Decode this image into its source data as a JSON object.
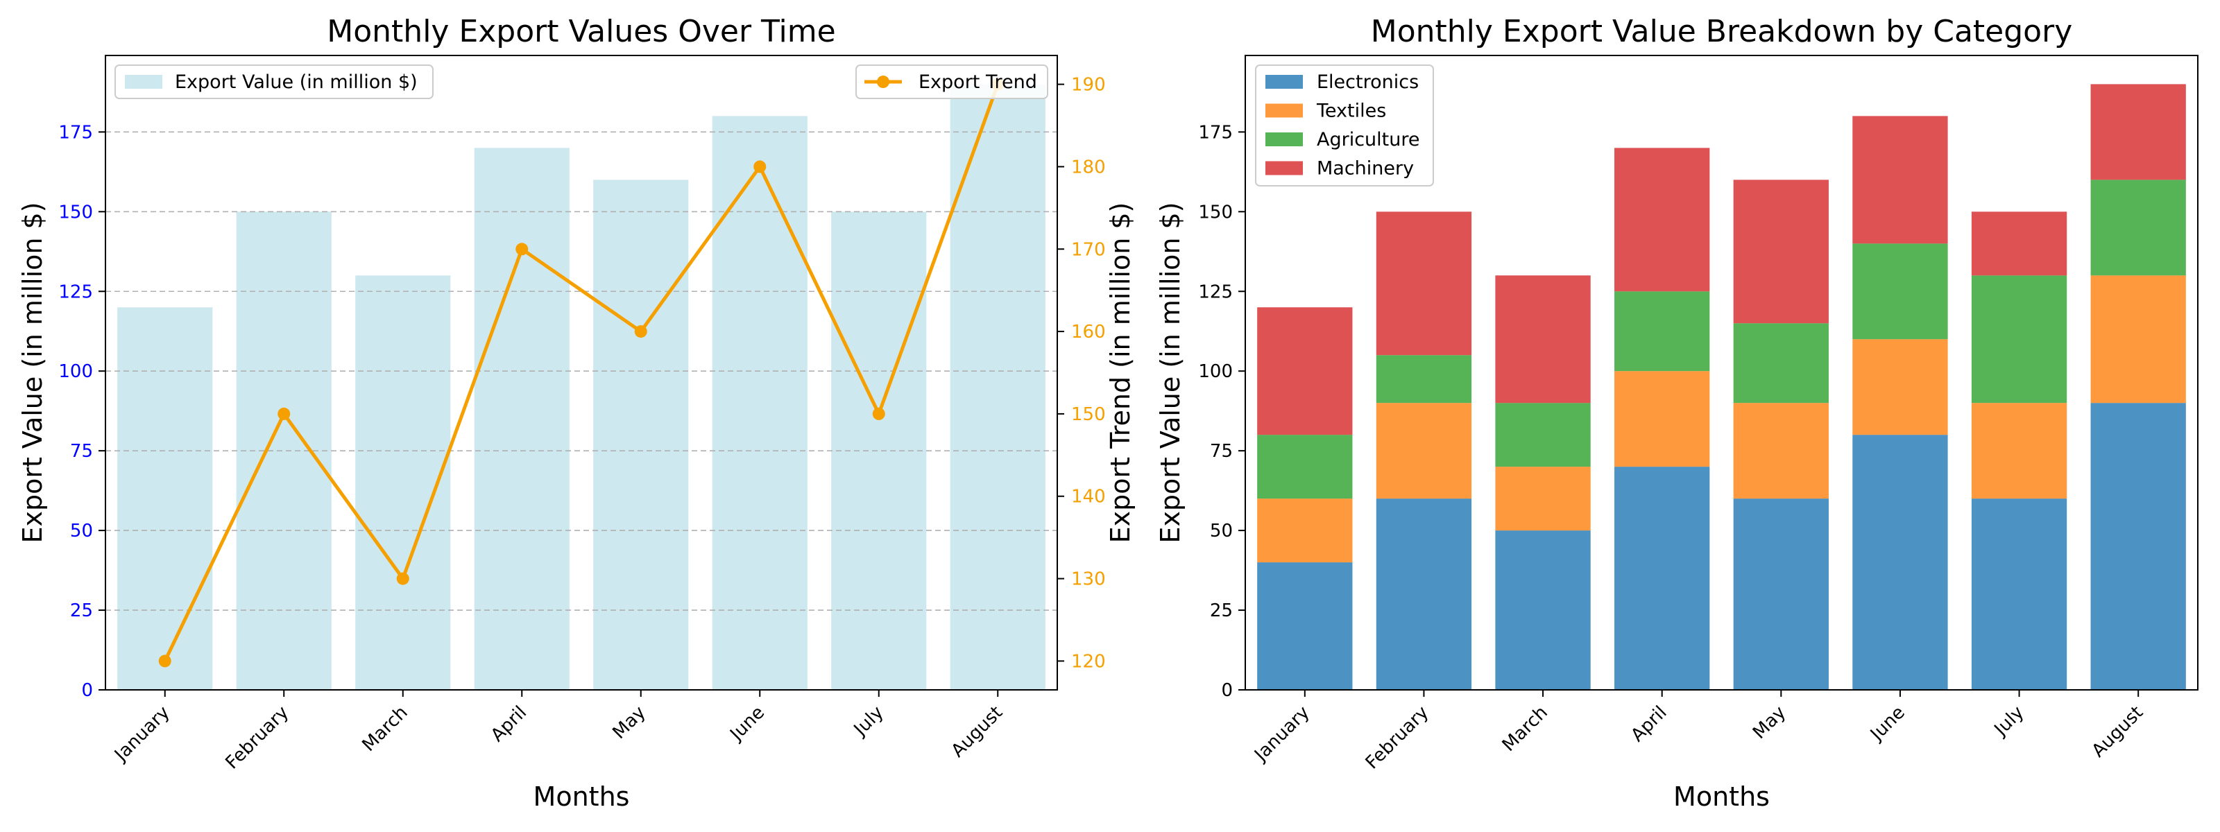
{
  "chart_data": [
    {
      "type": "bar",
      "title": "Monthly Export Values Over Time",
      "xlabel": "Months",
      "ylabel": "Export Value (in million $)",
      "ylabel_right": "Export Trend (in million $)",
      "categories": [
        "January",
        "February",
        "March",
        "April",
        "May",
        "June",
        "July",
        "August"
      ],
      "ylim": [
        0,
        199
      ],
      "ylim_right": [
        116.5,
        193.5
      ],
      "yticks": [
        0,
        25,
        50,
        75,
        100,
        125,
        150,
        175
      ],
      "yticks_right": [
        120,
        130,
        140,
        150,
        160,
        170,
        180,
        190
      ],
      "grid": "horizontal dashed",
      "series": [
        {
          "name": "Export Value (in million $)",
          "kind": "bar",
          "axis": "left",
          "color": "#add8e6",
          "values": [
            120,
            150,
            130,
            170,
            160,
            180,
            150,
            190
          ]
        },
        {
          "name": "Export Trend",
          "kind": "line",
          "axis": "right",
          "color": "#f5a000",
          "values": [
            120,
            150,
            130,
            170,
            160,
            180,
            150,
            190
          ]
        }
      ],
      "legends": [
        {
          "placement": "upper-left",
          "entries": [
            "Export Value (in million $)"
          ]
        },
        {
          "placement": "upper-right",
          "entries": [
            "Export Trend"
          ]
        }
      ],
      "colors": {
        "left_axis": "#0000ff",
        "right_axis": "#f5a000"
      }
    },
    {
      "type": "bar",
      "stacked": true,
      "title": "Monthly Export Value Breakdown by Category",
      "xlabel": "Months",
      "ylabel": "Export Value (in million $)",
      "categories": [
        "January",
        "February",
        "March",
        "April",
        "May",
        "June",
        "July",
        "August"
      ],
      "ylim": [
        0,
        199
      ],
      "yticks": [
        0,
        25,
        50,
        75,
        100,
        125,
        150,
        175
      ],
      "legend": "upper-left",
      "series": [
        {
          "name": "Electronics",
          "color": "#1f77b4",
          "values": [
            40,
            60,
            50,
            70,
            60,
            80,
            60,
            90
          ]
        },
        {
          "name": "Textiles",
          "color": "#ff7f0e",
          "values": [
            20,
            30,
            20,
            30,
            30,
            30,
            30,
            40
          ]
        },
        {
          "name": "Agriculture",
          "color": "#2ca02c",
          "values": [
            20,
            15,
            20,
            25,
            25,
            30,
            40,
            30
          ]
        },
        {
          "name": "Machinery",
          "color": "#d62728",
          "values": [
            40,
            45,
            40,
            45,
            45,
            40,
            20,
            30
          ]
        }
      ]
    }
  ]
}
